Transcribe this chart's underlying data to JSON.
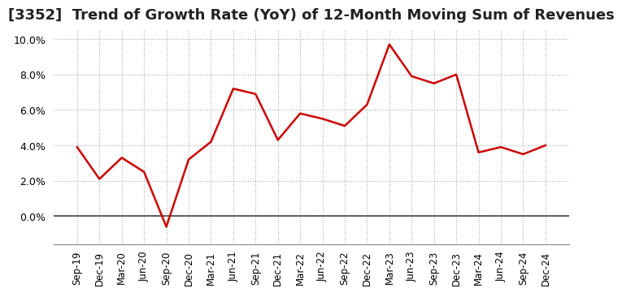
{
  "title": "[3352]  Trend of Growth Rate (YoY) of 12-Month Moving Sum of Revenues",
  "x_labels": [
    "Sep-19",
    "Dec-19",
    "Mar-20",
    "Jun-20",
    "Sep-20",
    "Dec-20",
    "Mar-21",
    "Jun-21",
    "Sep-21",
    "Dec-21",
    "Mar-22",
    "Jun-22",
    "Sep-22",
    "Dec-22",
    "Mar-23",
    "Jun-23",
    "Sep-23",
    "Dec-23",
    "Mar-24",
    "Jun-24",
    "Sep-24",
    "Dec-24"
  ],
  "y_values": [
    0.039,
    0.021,
    0.033,
    0.025,
    -0.006,
    0.032,
    0.042,
    0.072,
    0.069,
    0.043,
    0.058,
    0.055,
    0.051,
    0.063,
    0.097,
    0.079,
    0.075,
    0.08,
    0.036,
    0.039,
    0.035,
    0.04
  ],
  "line_color": "#cc0000",
  "line_width": 1.8,
  "background_color": "#ffffff",
  "plot_bg_color": "#ffffff",
  "grid_color": "#aaaaaa",
  "title_fontsize": 13,
  "ylim": [
    -0.016,
    0.105
  ],
  "yticks": [
    0.0,
    0.02,
    0.04,
    0.06,
    0.08,
    0.1
  ],
  "zero_line_color": "#444444"
}
